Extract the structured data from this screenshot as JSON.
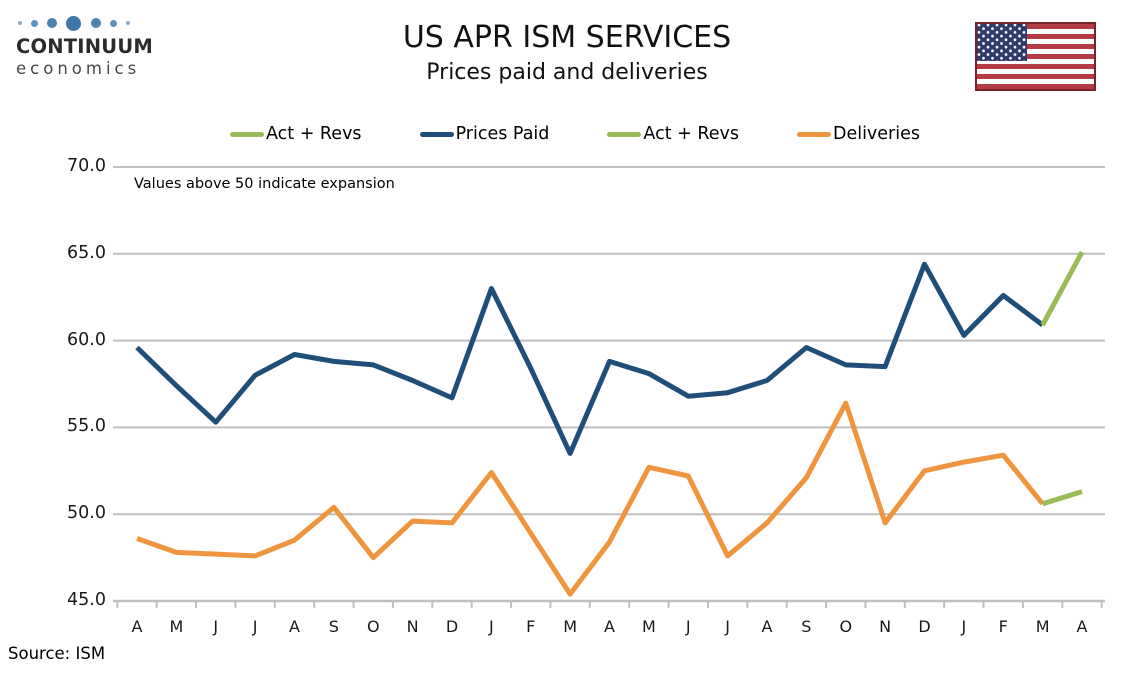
{
  "logo": {
    "line1": "CONTINUUM",
    "line2": "economics"
  },
  "header": {
    "title": "US APR ISM SERVICES",
    "subtitle": "Prices paid and deliveries"
  },
  "legend": [
    {
      "label": "Act + Revs",
      "color": "#9bbb59"
    },
    {
      "label": "Prices Paid",
      "color": "#1f4e79"
    },
    {
      "label": "Act + Revs",
      "color": "#9bbb59"
    },
    {
      "label": "Deliveries",
      "color": "#f0953f"
    }
  ],
  "annotation": "Values above 50 indicate expansion",
  "source": "Source: ISM",
  "colors": {
    "grid": "#bfbfbf",
    "blue": "#1f4e79",
    "orange": "#f0953f",
    "green": "#9bbb59"
  },
  "chart_data": {
    "type": "line",
    "title": "US APR ISM SERVICES — Prices paid and deliveries",
    "x_labels": [
      "A",
      "M",
      "J",
      "J",
      "A",
      "S",
      "O",
      "N",
      "D",
      "J",
      "F",
      "M",
      "A",
      "M",
      "J",
      "J",
      "A",
      "S",
      "O",
      "N",
      "D",
      "J",
      "F",
      "M",
      "A"
    ],
    "ylim": [
      45,
      70
    ],
    "ytick_step": 5,
    "ytick_labels": [
      "70.0",
      "65.0",
      "60.0",
      "55.0",
      "50.0",
      "45.0"
    ],
    "grid": true,
    "legend_position": "top",
    "series": [
      {
        "name": "Prices Paid",
        "color": "#1f4e79",
        "values": [
          59.6,
          57.4,
          55.3,
          58.0,
          59.2,
          58.8,
          58.6,
          57.7,
          56.7,
          63.0,
          58.4,
          53.5,
          58.8,
          58.1,
          56.8,
          57.0,
          57.7,
          59.6,
          58.6,
          58.5,
          64.4,
          60.3,
          62.6,
          60.9,
          null
        ]
      },
      {
        "name": "Deliveries",
        "color": "#f0953f",
        "values": [
          48.6,
          47.8,
          47.7,
          47.6,
          48.5,
          50.4,
          47.5,
          49.6,
          49.5,
          52.4,
          48.9,
          45.4,
          48.4,
          52.7,
          52.2,
          47.6,
          49.5,
          52.1,
          56.4,
          49.5,
          52.5,
          53.0,
          53.4,
          50.6,
          null
        ]
      },
      {
        "name": "Act + Revs (Prices Paid)",
        "color": "#9bbb59",
        "values": [
          null,
          null,
          null,
          null,
          null,
          null,
          null,
          null,
          null,
          null,
          null,
          null,
          null,
          null,
          null,
          null,
          null,
          null,
          null,
          null,
          null,
          null,
          null,
          60.9,
          65.1
        ]
      },
      {
        "name": "Act + Revs (Deliveries)",
        "color": "#9bbb59",
        "values": [
          null,
          null,
          null,
          null,
          null,
          null,
          null,
          null,
          null,
          null,
          null,
          null,
          null,
          null,
          null,
          null,
          null,
          null,
          null,
          null,
          null,
          null,
          null,
          50.6,
          51.3
        ]
      }
    ]
  }
}
